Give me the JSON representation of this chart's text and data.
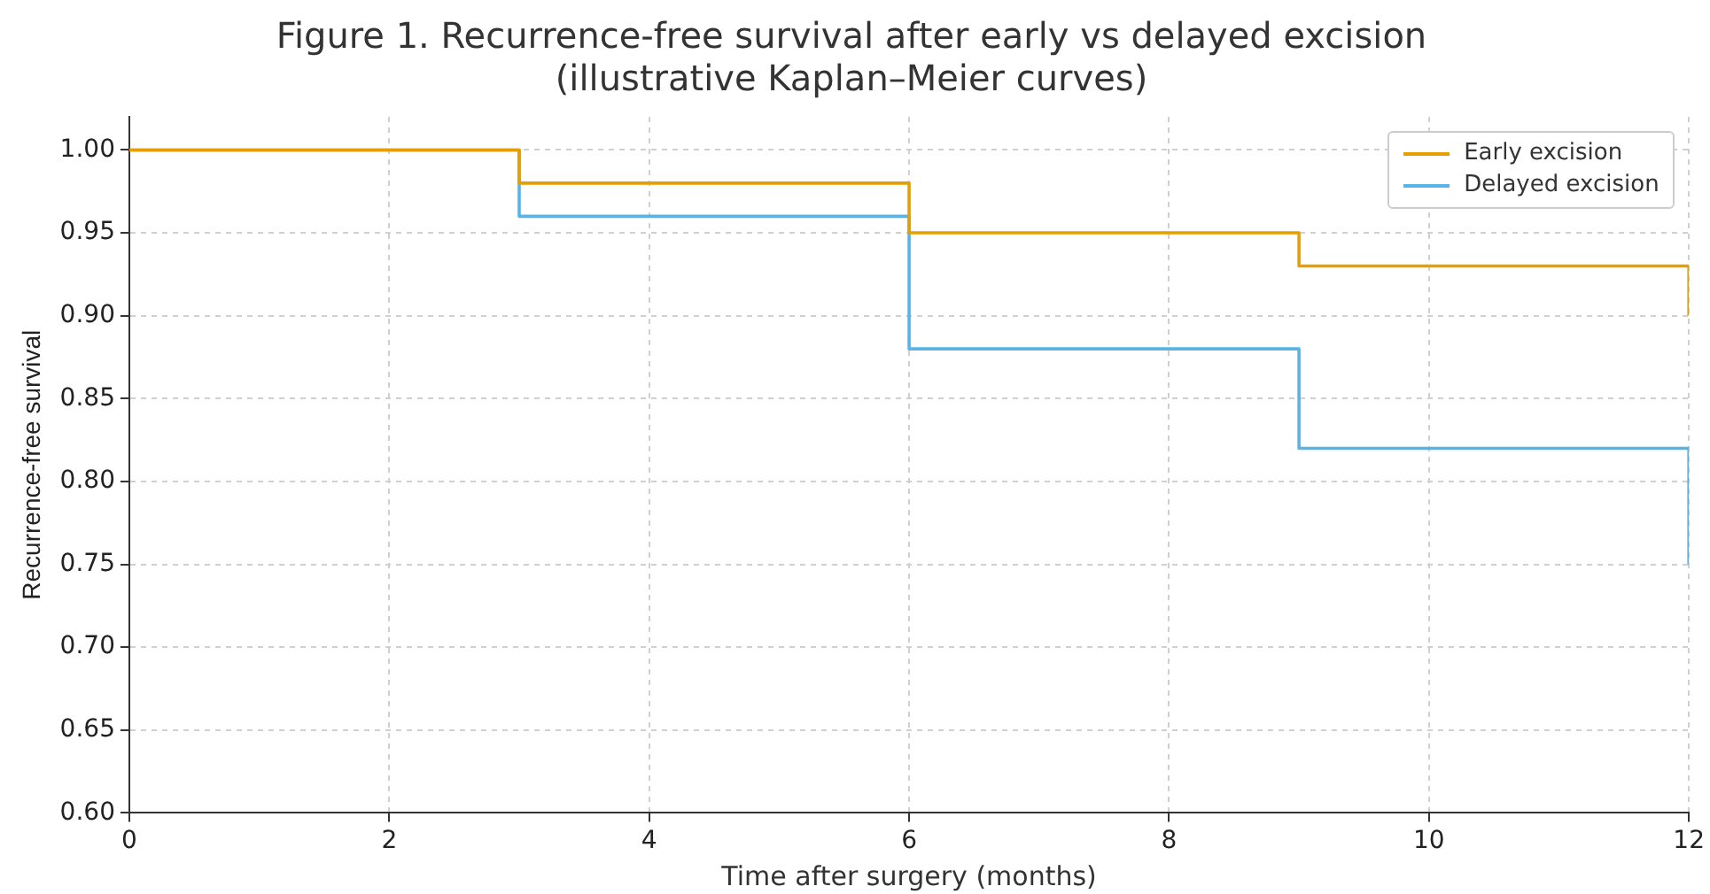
{
  "chart_data": {
    "type": "step",
    "title": "Figure 1. Recurrence-free survival after early vs delayed excision",
    "subtitle": "(illustrative Kaplan–Meier curves)",
    "xlabel": "Time after surgery (months)",
    "ylabel": "Recurrence-free survival",
    "x": [
      0,
      3,
      6,
      9,
      12
    ],
    "series": [
      {
        "name": "Early excision",
        "color": "#e69f00",
        "values": [
          1.0,
          0.98,
          0.95,
          0.93,
          0.9
        ]
      },
      {
        "name": "Delayed excision",
        "color": "#56b4e9",
        "values": [
          1.0,
          0.96,
          0.88,
          0.82,
          0.75
        ]
      }
    ],
    "xlim": [
      0,
      12
    ],
    "xticks": [
      0,
      2,
      4,
      6,
      8,
      10,
      12
    ],
    "ylim": [
      0.6,
      1.02
    ],
    "yticks": [
      {
        "value": 0.6,
        "label": "0.60"
      },
      {
        "value": 0.65,
        "label": "0.65"
      },
      {
        "value": 0.7,
        "label": "0.70"
      },
      {
        "value": 0.75,
        "label": "0.75"
      },
      {
        "value": 0.8,
        "label": "0.80"
      },
      {
        "value": 0.85,
        "label": "0.85"
      },
      {
        "value": 0.9,
        "label": "0.90"
      },
      {
        "value": 0.95,
        "label": "0.95"
      },
      {
        "value": 1.0,
        "label": "1.00"
      }
    ],
    "grid": true,
    "legend": "top right",
    "line_style": "solid",
    "marker": "none"
  }
}
